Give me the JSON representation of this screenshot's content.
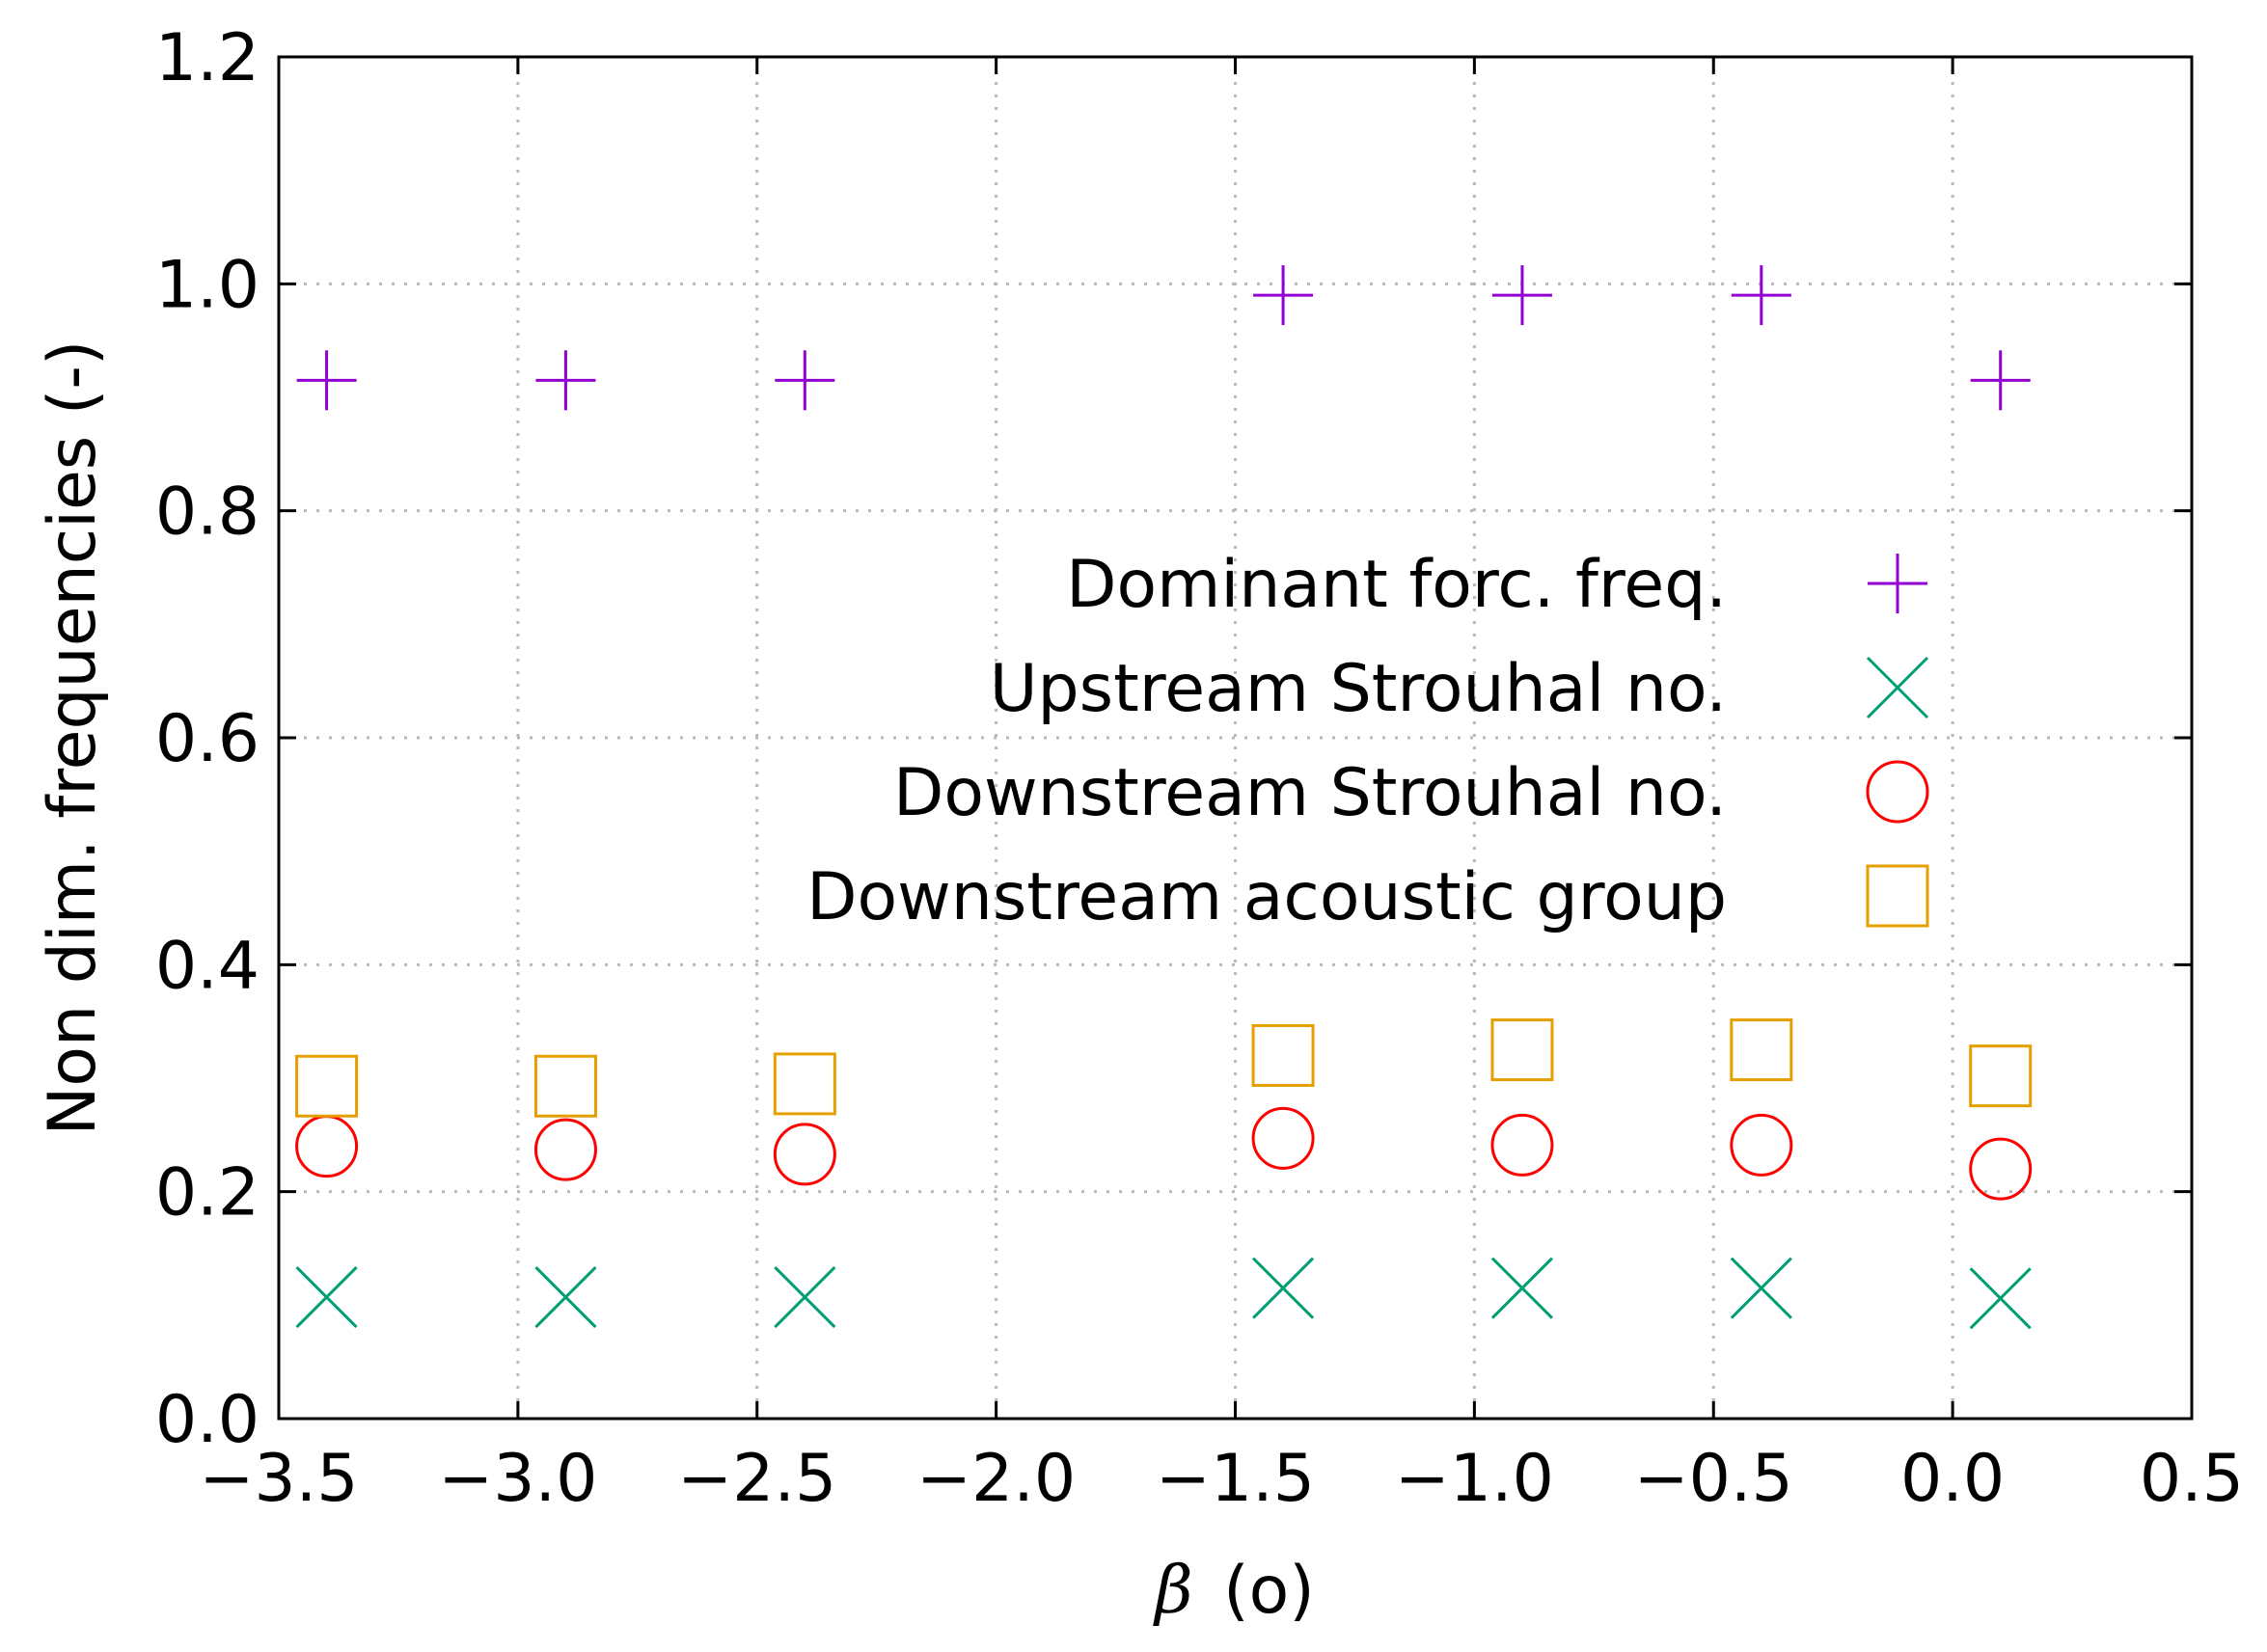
{
  "chart_data": {
    "type": "scatter",
    "xlabel_symbol": "β",
    "xlabel_unit": "(o)",
    "ylabel": "Non dim. frequencies (-)",
    "xlim": [
      -3.5,
      0.5
    ],
    "ylim": [
      0.0,
      1.2
    ],
    "xticks": [
      -3.5,
      -3.0,
      -2.5,
      -2.0,
      -1.5,
      -1.0,
      -0.5,
      0.0,
      0.5
    ],
    "xtick_labels": [
      "−3.5",
      "−3.0",
      "−2.5",
      "−2.0",
      "−1.5",
      "−1.0",
      "−0.5",
      "0.0",
      "0.5"
    ],
    "yticks": [
      0.0,
      0.2,
      0.4,
      0.6,
      0.8,
      1.0,
      1.2
    ],
    "ytick_labels": [
      "0.0",
      "0.2",
      "0.4",
      "0.6",
      "0.8",
      "1.0",
      "1.2"
    ],
    "grid": true,
    "legend_position": "center-right",
    "series": [
      {
        "name": "Dominant forc. freq.",
        "marker": "plus",
        "color": "#9400d3",
        "x": [
          -3.4,
          -2.9,
          -2.4,
          -1.4,
          -0.9,
          -0.4,
          0.1
        ],
        "y": [
          0.915,
          0.915,
          0.915,
          0.99,
          0.99,
          0.99,
          0.915
        ]
      },
      {
        "name": "Upstream Strouhal no.",
        "marker": "cross",
        "color": "#009e73",
        "x": [
          -3.4,
          -2.9,
          -2.4,
          -1.4,
          -0.9,
          -0.4,
          0.1
        ],
        "y": [
          0.107,
          0.107,
          0.107,
          0.115,
          0.115,
          0.115,
          0.106
        ]
      },
      {
        "name": "Downstream Strouhal no.",
        "marker": "circle",
        "color": "#ff0000",
        "x": [
          -3.4,
          -2.9,
          -2.4,
          -1.4,
          -0.9,
          -0.4,
          0.1
        ],
        "y": [
          0.24,
          0.237,
          0.233,
          0.247,
          0.241,
          0.241,
          0.22
        ]
      },
      {
        "name": "Downstream acoustic group",
        "marker": "square",
        "color": "#e69f00",
        "x": [
          -3.4,
          -2.9,
          -2.4,
          -1.4,
          -0.9,
          -0.4,
          0.1
        ],
        "y": [
          0.293,
          0.293,
          0.295,
          0.32,
          0.325,
          0.325,
          0.302
        ]
      }
    ]
  }
}
